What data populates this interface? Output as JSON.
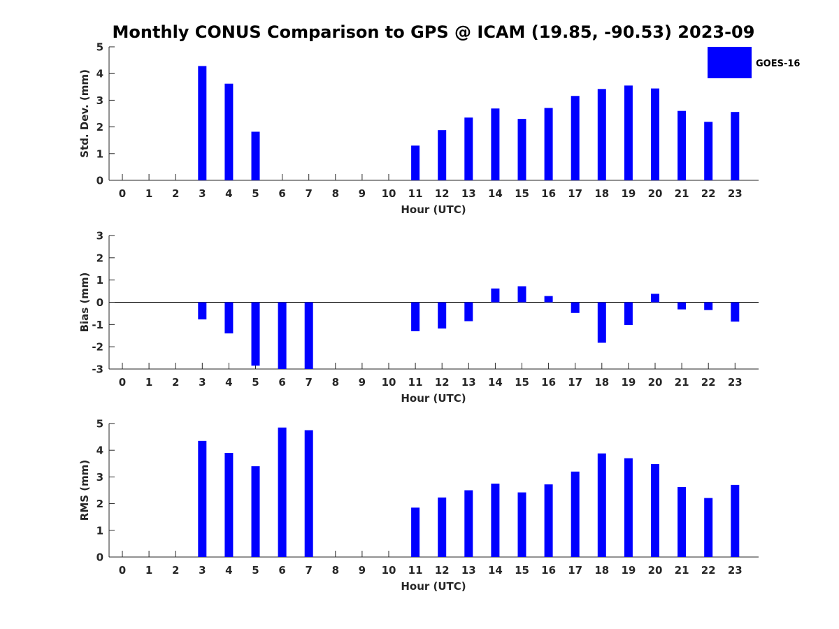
{
  "title": "Monthly CONUS Comparison to GPS @ ICAM (19.85, -90.53) 2023-09",
  "legend": {
    "position": "top-right",
    "label": "GOES-16",
    "color": "#0000ff"
  },
  "colors": {
    "bar": "#0000ff",
    "axis": "#262626",
    "background": "#ffffff"
  },
  "chart_data": [
    {
      "type": "bar",
      "xlabel": "Hour (UTC)",
      "ylabel": "Std. Dev. (mm)",
      "ylim": [
        0,
        5
      ],
      "yticks": [
        0,
        1,
        2,
        3,
        4,
        5
      ],
      "categories": [
        "0",
        "1",
        "2",
        "3",
        "4",
        "5",
        "6",
        "7",
        "8",
        "9",
        "10",
        "11",
        "12",
        "13",
        "14",
        "15",
        "16",
        "17",
        "18",
        "19",
        "20",
        "21",
        "22",
        "23"
      ],
      "series": [
        {
          "name": "GOES-16",
          "values": [
            null,
            null,
            null,
            4.28,
            3.62,
            1.82,
            null,
            null,
            null,
            null,
            null,
            1.3,
            1.88,
            2.35,
            2.69,
            2.3,
            2.71,
            3.16,
            3.42,
            3.55,
            3.44,
            2.6,
            2.19,
            2.56
          ]
        }
      ],
      "grid": false
    },
    {
      "type": "bar",
      "xlabel": "Hour (UTC)",
      "ylabel": "Bias (mm)",
      "ylim": [
        -3,
        3
      ],
      "yticks": [
        -3,
        -2,
        -1,
        0,
        1,
        2,
        3
      ],
      "categories": [
        "0",
        "1",
        "2",
        "3",
        "4",
        "5",
        "6",
        "7",
        "8",
        "9",
        "10",
        "11",
        "12",
        "13",
        "14",
        "15",
        "16",
        "17",
        "18",
        "19",
        "20",
        "21",
        "22",
        "23"
      ],
      "series": [
        {
          "name": "GOES-16",
          "values": [
            null,
            null,
            null,
            -0.77,
            -1.4,
            -2.85,
            -3.0,
            -3.0,
            null,
            null,
            null,
            -1.3,
            -1.18,
            -0.85,
            0.62,
            0.72,
            0.28,
            -0.48,
            -1.82,
            -1.02,
            0.38,
            -0.32,
            -0.35,
            -0.87
          ]
        }
      ],
      "grid": false
    },
    {
      "type": "bar",
      "xlabel": "Hour (UTC)",
      "ylabel": "RMS (mm)",
      "ylim": [
        0,
        5
      ],
      "yticks": [
        0,
        1,
        2,
        3,
        4,
        5
      ],
      "categories": [
        "0",
        "1",
        "2",
        "3",
        "4",
        "5",
        "6",
        "7",
        "8",
        "9",
        "10",
        "11",
        "12",
        "13",
        "14",
        "15",
        "16",
        "17",
        "18",
        "19",
        "20",
        "21",
        "22",
        "23"
      ],
      "series": [
        {
          "name": "GOES-16",
          "values": [
            null,
            null,
            null,
            4.35,
            3.9,
            3.4,
            4.85,
            4.75,
            null,
            null,
            null,
            1.85,
            2.23,
            2.5,
            2.75,
            2.42,
            2.72,
            3.2,
            3.88,
            3.7,
            3.48,
            2.62,
            2.21,
            2.7
          ]
        }
      ],
      "grid": false
    }
  ]
}
